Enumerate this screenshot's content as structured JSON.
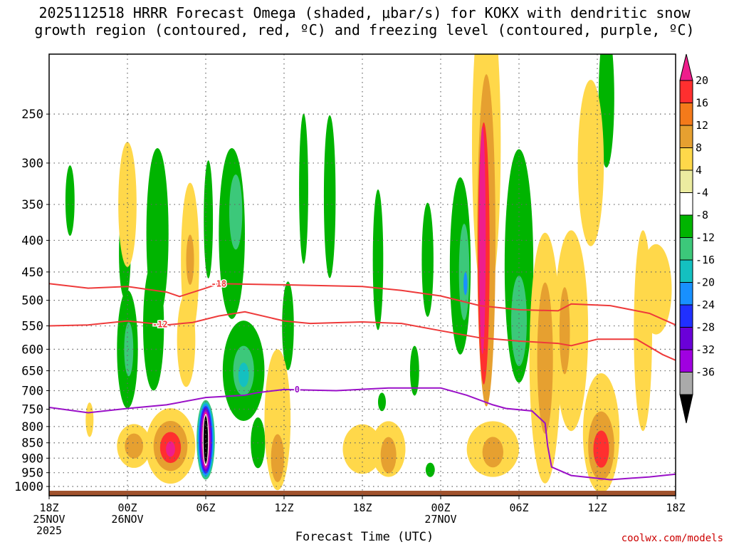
{
  "title": {
    "line1": "2025112518 HRRR Forecast Omega (shaded, μbar/s) for KOKX with dendritic snow",
    "line2": "growth region (contoured, red, ºC) and freezing level (contoured, purple, ºC)"
  },
  "credit": "coolwx.com/models",
  "chart_data": {
    "type": "heatmap",
    "x_axis": {
      "title": "Forecast Time (UTC)",
      "range_hours": [
        0,
        48
      ],
      "ticks": [
        {
          "hour": 0,
          "lines": [
            "18Z",
            "25NOV",
            "2025"
          ]
        },
        {
          "hour": 6,
          "lines": [
            "00Z",
            "26NOV"
          ]
        },
        {
          "hour": 12,
          "lines": [
            "06Z"
          ]
        },
        {
          "hour": 18,
          "lines": [
            "12Z"
          ]
        },
        {
          "hour": 24,
          "lines": [
            "18Z"
          ]
        },
        {
          "hour": 30,
          "lines": [
            "00Z",
            "27NOV"
          ]
        },
        {
          "hour": 36,
          "lines": [
            "06Z"
          ]
        },
        {
          "hour": 42,
          "lines": [
            "12Z"
          ]
        },
        {
          "hour": 48,
          "lines": [
            "18Z"
          ]
        }
      ]
    },
    "y_axis": {
      "units": "hPa",
      "scale": "log",
      "ticks": [
        250,
        300,
        350,
        400,
        450,
        500,
        550,
        600,
        650,
        700,
        750,
        800,
        850,
        900,
        950,
        1000
      ],
      "top_hpa": 200,
      "bottom_hpa": 1035
    },
    "grid": true,
    "colorbar": {
      "labels": [
        "20",
        "16",
        "12",
        "8",
        "4",
        "-4",
        "-8",
        "-12",
        "-16",
        "-20",
        "-24",
        "-28",
        "-32",
        "-36"
      ],
      "colors": [
        "#ff2f2f",
        "#f47a1a",
        "#e6a030",
        "#ffd84a",
        "#ececa0",
        "#ffffff",
        "#00b400",
        "#3cc87a",
        "#14c0c0",
        "#1890ff",
        "#2030ff",
        "#6a00d8",
        "#a000e0",
        "#aaaaaa"
      ],
      "top_color": "#ee1e8c",
      "bottom_color": "#000000"
    },
    "omega_blobs": [
      {
        "t": 1.6,
        "p": 345,
        "dt": 0.35,
        "dp": 45,
        "c": "#00b400"
      },
      {
        "t": 5.8,
        "p": 420,
        "dt": 0.45,
        "dp": 70,
        "c": "#00b400"
      },
      {
        "t": 6.0,
        "p": 600,
        "dt": 0.8,
        "dp": 130,
        "c": "#00b400"
      },
      {
        "t": 6.1,
        "p": 600,
        "dt": 0.35,
        "dp": 60,
        "c": "#3cc87a"
      },
      {
        "t": 8.3,
        "p": 390,
        "dt": 0.85,
        "dp": 120,
        "c": "#00b400"
      },
      {
        "t": 8.0,
        "p": 550,
        "dt": 0.8,
        "dp": 130,
        "c": "#00b400"
      },
      {
        "t": 12.2,
        "p": 370,
        "dt": 0.35,
        "dp": 80,
        "c": "#00b400"
      },
      {
        "t": 19.5,
        "p": 330,
        "dt": 0.35,
        "dp": 90,
        "c": "#00b400"
      },
      {
        "t": 18.3,
        "p": 550,
        "dt": 0.45,
        "dp": 90,
        "c": "#00b400"
      },
      {
        "t": 21.5,
        "p": 340,
        "dt": 0.45,
        "dp": 100,
        "c": "#00b400"
      },
      {
        "t": 14.0,
        "p": 390,
        "dt": 1.0,
        "dp": 120,
        "c": "#00b400"
      },
      {
        "t": 14.3,
        "p": 360,
        "dt": 0.5,
        "dp": 50,
        "c": "#3cc87a"
      },
      {
        "t": 14.9,
        "p": 650,
        "dt": 1.6,
        "dp": 120,
        "c": "#00b400"
      },
      {
        "t": 14.9,
        "p": 650,
        "dt": 0.8,
        "dp": 60,
        "c": "#3cc87a"
      },
      {
        "t": 14.9,
        "p": 660,
        "dt": 0.4,
        "dp": 30,
        "c": "#14c0c0"
      },
      {
        "t": 16.0,
        "p": 850,
        "dt": 0.55,
        "dp": 80,
        "c": "#00b400"
      },
      {
        "t": 25.2,
        "p": 430,
        "dt": 0.4,
        "dp": 110,
        "c": "#00b400"
      },
      {
        "t": 29.0,
        "p": 430,
        "dt": 0.45,
        "dp": 90,
        "c": "#00b400"
      },
      {
        "t": 28.0,
        "p": 650,
        "dt": 0.35,
        "dp": 60,
        "c": "#00b400"
      },
      {
        "t": 29.2,
        "p": 940,
        "dt": 0.35,
        "dp": 25,
        "c": "#00b400"
      },
      {
        "t": 31.5,
        "p": 440,
        "dt": 0.8,
        "dp": 140,
        "c": "#00b400"
      },
      {
        "t": 31.8,
        "p": 450,
        "dt": 0.4,
        "dp": 80,
        "c": "#3cc87a"
      },
      {
        "t": 31.9,
        "p": 470,
        "dt": 0.15,
        "dp": 20,
        "c": "#1890ff"
      },
      {
        "t": 36.0,
        "p": 440,
        "dt": 1.1,
        "dp": 180,
        "c": "#00b400"
      },
      {
        "t": 36.0,
        "p": 540,
        "dt": 0.6,
        "dp": 90,
        "c": "#3cc87a"
      },
      {
        "t": 42.7,
        "p": 235,
        "dt": 0.6,
        "dp": 60,
        "c": "#00b400"
      },
      {
        "t": 25.5,
        "p": 730,
        "dt": 0.3,
        "dp": 25,
        "c": "#00b400"
      },
      {
        "t": 6.0,
        "p": 350,
        "dt": 0.7,
        "dp": 80,
        "c": "#ffd84a"
      },
      {
        "t": 10.8,
        "p": 430,
        "dt": 0.7,
        "dp": 120,
        "c": "#ffd84a"
      },
      {
        "t": 10.8,
        "p": 430,
        "dt": 0.3,
        "dp": 40,
        "c": "#e6a030"
      },
      {
        "t": 10.5,
        "p": 580,
        "dt": 0.7,
        "dp": 100,
        "c": "#ffd84a"
      },
      {
        "t": 6.5,
        "p": 860,
        "dt": 1.3,
        "dp": 70,
        "c": "#ffd84a"
      },
      {
        "t": 6.5,
        "p": 860,
        "dt": 0.7,
        "dp": 40,
        "c": "#e6a030"
      },
      {
        "t": 9.3,
        "p": 860,
        "dt": 1.9,
        "dp": 120,
        "c": "#ffd84a"
      },
      {
        "t": 9.3,
        "p": 860,
        "dt": 1.3,
        "dp": 80,
        "c": "#e6a030"
      },
      {
        "t": 9.3,
        "p": 865,
        "dt": 0.8,
        "dp": 50,
        "c": "#ff2f2f"
      },
      {
        "t": 9.3,
        "p": 870,
        "dt": 0.35,
        "dp": 25,
        "c": "#ee1e8c"
      },
      {
        "t": 3.1,
        "p": 780,
        "dt": 0.3,
        "dp": 50,
        "c": "#ffd84a"
      },
      {
        "t": 17.5,
        "p": 780,
        "dt": 1.0,
        "dp": 200,
        "c": "#ffd84a"
      },
      {
        "t": 17.5,
        "p": 900,
        "dt": 0.5,
        "dp": 80,
        "c": "#e6a030"
      },
      {
        "t": 24.0,
        "p": 870,
        "dt": 1.5,
        "dp": 80,
        "c": "#ffd84a"
      },
      {
        "t": 26.0,
        "p": 870,
        "dt": 1.3,
        "dp": 90,
        "c": "#ffd84a"
      },
      {
        "t": 26.0,
        "p": 890,
        "dt": 0.6,
        "dp": 60,
        "c": "#e6a030"
      },
      {
        "t": 33.5,
        "p": 280,
        "dt": 1.1,
        "dp": 150,
        "c": "#ffd84a"
      },
      {
        "t": 33.5,
        "p": 400,
        "dt": 0.7,
        "dp": 220,
        "c": "#e6a030"
      },
      {
        "t": 33.3,
        "p": 420,
        "dt": 0.45,
        "dp": 190,
        "c": "#ff2f2f"
      },
      {
        "t": 33.2,
        "p": 400,
        "dt": 0.25,
        "dp": 160,
        "c": "#ee1e8c"
      },
      {
        "t": 34.0,
        "p": 870,
        "dt": 2.0,
        "dp": 90,
        "c": "#ffd84a"
      },
      {
        "t": 34.0,
        "p": 880,
        "dt": 0.8,
        "dp": 50,
        "c": "#e6a030"
      },
      {
        "t": 38.0,
        "p": 620,
        "dt": 1.2,
        "dp": 270,
        "c": "#ffd84a"
      },
      {
        "t": 38.0,
        "p": 620,
        "dt": 0.6,
        "dp": 170,
        "c": "#e6a030"
      },
      {
        "t": 40.0,
        "p": 560,
        "dt": 1.3,
        "dp": 200,
        "c": "#ffd84a"
      },
      {
        "t": 39.5,
        "p": 560,
        "dt": 0.4,
        "dp": 90,
        "c": "#e6a030"
      },
      {
        "t": 41.5,
        "p": 300,
        "dt": 1.0,
        "dp": 90,
        "c": "#ffd84a"
      },
      {
        "t": 42.3,
        "p": 820,
        "dt": 1.4,
        "dp": 180,
        "c": "#ffd84a"
      },
      {
        "t": 42.3,
        "p": 860,
        "dt": 1.0,
        "dp": 110,
        "c": "#e6a030"
      },
      {
        "t": 42.3,
        "p": 870,
        "dt": 0.6,
        "dp": 60,
        "c": "#ff2f2f"
      },
      {
        "t": 45.5,
        "p": 560,
        "dt": 0.7,
        "dp": 200,
        "c": "#ffd84a"
      },
      {
        "t": 46.5,
        "p": 480,
        "dt": 1.2,
        "dp": 80,
        "c": "#ffd84a"
      }
    ],
    "sinking_core": {
      "t": 12.0,
      "p_top": 725,
      "p_bottom": 975,
      "half_width_hours": 0.7,
      "rings": [
        "#3cc87a",
        "#14c0c0",
        "#1890ff",
        "#2030ff",
        "#6a00d8",
        "#a000e0",
        "#ee1e8c",
        "#ffffff",
        "#000000"
      ]
    },
    "contours": [
      {
        "name": "-18",
        "label": "-18",
        "color": "#ee3a3a",
        "label_at": [
          13.0,
          470
        ],
        "points": [
          [
            0,
            470
          ],
          [
            3,
            478
          ],
          [
            6,
            475
          ],
          [
            9,
            485
          ],
          [
            10,
            493
          ],
          [
            12,
            478
          ],
          [
            13,
            470
          ],
          [
            18,
            472
          ],
          [
            24,
            475
          ],
          [
            27,
            482
          ],
          [
            30,
            492
          ],
          [
            33,
            510
          ],
          [
            36,
            518
          ],
          [
            39,
            520
          ],
          [
            40,
            507
          ],
          [
            43,
            510
          ],
          [
            46,
            525
          ],
          [
            48,
            548
          ]
        ]
      },
      {
        "name": "-12",
        "label": "-12",
        "color": "#ee3a3a",
        "label_at": [
          8.5,
          547
        ],
        "points": [
          [
            0,
            550
          ],
          [
            3,
            548
          ],
          [
            6,
            540
          ],
          [
            9,
            548
          ],
          [
            11,
            543
          ],
          [
            13,
            530
          ],
          [
            15,
            522
          ],
          [
            18,
            540
          ],
          [
            20,
            545
          ],
          [
            24,
            542
          ],
          [
            27,
            545
          ],
          [
            30,
            560
          ],
          [
            33,
            575
          ],
          [
            36,
            582
          ],
          [
            39,
            587
          ],
          [
            40,
            592
          ],
          [
            42,
            578
          ],
          [
            45,
            578
          ],
          [
            47,
            612
          ],
          [
            48,
            625
          ]
        ]
      },
      {
        "name": "0",
        "label": "0",
        "color": "#9a10c8",
        "label_at": [
          19.0,
          697
        ],
        "points": [
          [
            0,
            745
          ],
          [
            3,
            760
          ],
          [
            6,
            748
          ],
          [
            9,
            738
          ],
          [
            12,
            718
          ],
          [
            15,
            712
          ],
          [
            16,
            705
          ],
          [
            18,
            697
          ],
          [
            22,
            700
          ],
          [
            26,
            693
          ],
          [
            30,
            693
          ],
          [
            32,
            712
          ],
          [
            34,
            738
          ],
          [
            35,
            748
          ],
          [
            37,
            755
          ],
          [
            38,
            790
          ],
          [
            38.2,
            860
          ],
          [
            38.5,
            930
          ],
          [
            40,
            960
          ],
          [
            43,
            975
          ],
          [
            46,
            965
          ],
          [
            48,
            955
          ]
        ]
      }
    ],
    "ground": {
      "color": "#a0522d",
      "p_top": 1000
    }
  }
}
